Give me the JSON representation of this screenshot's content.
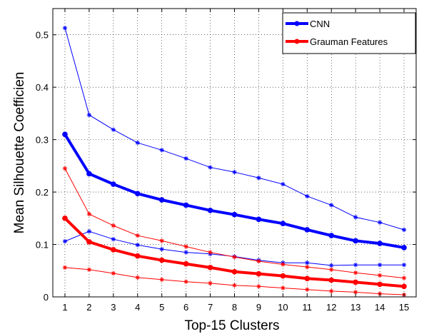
{
  "chart_data": {
    "type": "line",
    "xlabel": "Top-15 Clusters",
    "ylabel": "Mean Silhouette Coefficien",
    "x": [
      1,
      2,
      3,
      4,
      5,
      6,
      7,
      8,
      9,
      10,
      11,
      12,
      13,
      14,
      15
    ],
    "xlim": [
      0.5,
      15.5
    ],
    "ylim": [
      0,
      0.55
    ],
    "yticks": [
      0,
      0.1,
      0.2,
      0.3,
      0.4,
      0.5
    ],
    "ytick_labels": [
      "0",
      "0.1",
      "0.2",
      "0.3",
      "0.4",
      "0.5"
    ],
    "xtick_labels": [
      "1",
      "2",
      "3",
      "4",
      "5",
      "6",
      "7",
      "8",
      "9",
      "10",
      "11",
      "12",
      "13",
      "14",
      "15"
    ],
    "grid": true,
    "legend_position": "top-right",
    "legend": [
      {
        "label": "CNN",
        "color": "#0000ff"
      },
      {
        "label": "Grauman Features",
        "color": "#ff0000"
      }
    ],
    "series": [
      {
        "name": "CNN",
        "color": "#0000ff",
        "role": "mean",
        "values": [
          0.31,
          0.235,
          0.215,
          0.197,
          0.185,
          0.175,
          0.165,
          0.157,
          0.148,
          0.14,
          0.128,
          0.117,
          0.107,
          0.102,
          0.094
        ]
      },
      {
        "color": "#0000ff",
        "role": "upper",
        "values": [
          0.513,
          0.347,
          0.319,
          0.294,
          0.28,
          0.264,
          0.247,
          0.238,
          0.227,
          0.215,
          0.192,
          0.175,
          0.152,
          0.142,
          0.128
        ]
      },
      {
        "color": "#0000ff",
        "role": "lower",
        "values": [
          0.106,
          0.125,
          0.11,
          0.099,
          0.091,
          0.085,
          0.082,
          0.077,
          0.07,
          0.065,
          0.065,
          0.06,
          0.061,
          0.061,
          0.061
        ]
      },
      {
        "name": "Grauman Features",
        "color": "#ff0000",
        "role": "mean",
        "values": [
          0.15,
          0.105,
          0.09,
          0.078,
          0.07,
          0.063,
          0.056,
          0.048,
          0.044,
          0.04,
          0.035,
          0.032,
          0.028,
          0.024,
          0.02
        ]
      },
      {
        "color": "#ff0000",
        "role": "upper",
        "values": [
          0.245,
          0.158,
          0.136,
          0.117,
          0.107,
          0.096,
          0.085,
          0.076,
          0.068,
          0.062,
          0.057,
          0.052,
          0.046,
          0.041,
          0.036
        ]
      },
      {
        "color": "#ff0000",
        "role": "lower",
        "values": [
          0.056,
          0.052,
          0.045,
          0.037,
          0.033,
          0.029,
          0.026,
          0.022,
          0.02,
          0.017,
          0.014,
          0.011,
          0.009,
          0.006,
          0.004
        ]
      }
    ]
  }
}
